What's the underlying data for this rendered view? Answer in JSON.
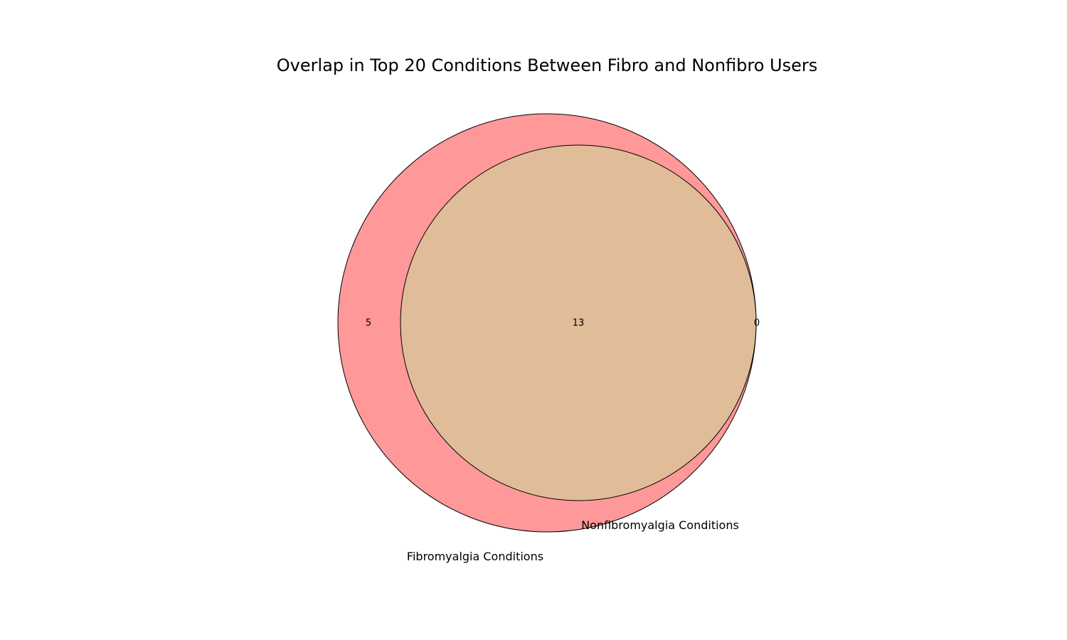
{
  "title": "Overlap in Top 20 Conditions Between Fibro and Nonfibro Users",
  "sets": [
    {
      "name": "Fibromyalgia Conditions",
      "color": "#ff9999",
      "edge_color": "#000000"
    },
    {
      "name": "Nonfibromyalgia Conditions",
      "color": "#c2ff99",
      "edge_color": "#000000"
    }
  ],
  "intersection_color": "#e0bc99",
  "counts": {
    "fibro_only": "5",
    "both": "13",
    "nonfibro_only": "0"
  }
}
